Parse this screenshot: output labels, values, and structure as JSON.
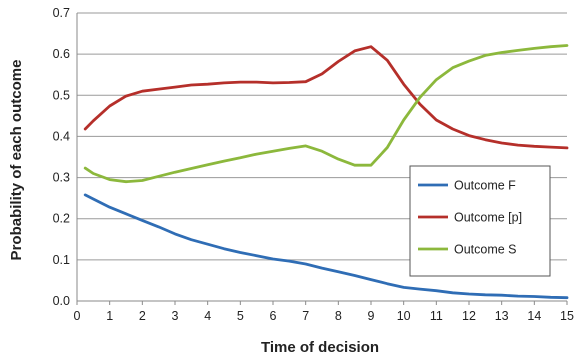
{
  "chart_data": {
    "type": "line",
    "title": "",
    "xlabel": "Time of decision",
    "ylabel": "Probability of each outcome",
    "xlim": [
      0,
      15
    ],
    "ylim": [
      0,
      0.7
    ],
    "x_ticks": [
      "0",
      "1",
      "2",
      "3",
      "4",
      "5",
      "6",
      "7",
      "8",
      "9",
      "10",
      "11",
      "12",
      "13",
      "14",
      "15"
    ],
    "y_ticks": [
      "0.0",
      "0.1",
      "0.2",
      "0.3",
      "0.4",
      "0.5",
      "0.6",
      "0.7"
    ],
    "grid": "horizontal",
    "legend_position": "right",
    "series": [
      {
        "name": "Outcome F",
        "color": "#2f6db5",
        "points": [
          [
            0.25,
            0.258
          ],
          [
            0.5,
            0.248
          ],
          [
            1,
            0.228
          ],
          [
            1.5,
            0.212
          ],
          [
            2,
            0.196
          ],
          [
            2.5,
            0.18
          ],
          [
            3,
            0.163
          ],
          [
            3.5,
            0.149
          ],
          [
            4,
            0.138
          ],
          [
            4.5,
            0.127
          ],
          [
            5,
            0.118
          ],
          [
            5.5,
            0.11
          ],
          [
            6,
            0.102
          ],
          [
            6.5,
            0.097
          ],
          [
            7,
            0.09
          ],
          [
            7.5,
            0.08
          ],
          [
            8,
            0.071
          ],
          [
            8.5,
            0.062
          ],
          [
            9,
            0.052
          ],
          [
            9.5,
            0.042
          ],
          [
            10,
            0.033
          ],
          [
            10.5,
            0.029
          ],
          [
            11,
            0.025
          ],
          [
            11.5,
            0.02
          ],
          [
            12,
            0.017
          ],
          [
            12.5,
            0.015
          ],
          [
            13,
            0.014
          ],
          [
            13.5,
            0.012
          ],
          [
            14,
            0.011
          ],
          [
            14.5,
            0.009
          ],
          [
            15,
            0.008
          ]
        ]
      },
      {
        "name": "Outcome [p]",
        "color": "#b52f2a",
        "points": [
          [
            0.25,
            0.418
          ],
          [
            0.5,
            0.438
          ],
          [
            1,
            0.474
          ],
          [
            1.5,
            0.498
          ],
          [
            2,
            0.51
          ],
          [
            2.5,
            0.515
          ],
          [
            3,
            0.52
          ],
          [
            3.5,
            0.525
          ],
          [
            4,
            0.527
          ],
          [
            4.5,
            0.53
          ],
          [
            5,
            0.532
          ],
          [
            5.5,
            0.532
          ],
          [
            6,
            0.53
          ],
          [
            6.5,
            0.531
          ],
          [
            7,
            0.533
          ],
          [
            7.5,
            0.552
          ],
          [
            8,
            0.582
          ],
          [
            8.5,
            0.608
          ],
          [
            9,
            0.618
          ],
          [
            9.5,
            0.585
          ],
          [
            10,
            0.527
          ],
          [
            10.5,
            0.478
          ],
          [
            11,
            0.44
          ],
          [
            11.5,
            0.418
          ],
          [
            12,
            0.402
          ],
          [
            12.5,
            0.392
          ],
          [
            13,
            0.384
          ],
          [
            13.5,
            0.379
          ],
          [
            14,
            0.376
          ],
          [
            14.5,
            0.374
          ],
          [
            15,
            0.372
          ]
        ]
      },
      {
        "name": "Outcome S",
        "color": "#8cb83c",
        "points": [
          [
            0.25,
            0.323
          ],
          [
            0.5,
            0.31
          ],
          [
            1,
            0.295
          ],
          [
            1.5,
            0.29
          ],
          [
            2,
            0.293
          ],
          [
            2.5,
            0.303
          ],
          [
            3,
            0.313
          ],
          [
            3.5,
            0.322
          ],
          [
            4,
            0.331
          ],
          [
            4.5,
            0.34
          ],
          [
            5,
            0.348
          ],
          [
            5.5,
            0.357
          ],
          [
            6,
            0.364
          ],
          [
            6.5,
            0.371
          ],
          [
            7,
            0.377
          ],
          [
            7.5,
            0.364
          ],
          [
            8,
            0.345
          ],
          [
            8.5,
            0.33
          ],
          [
            9,
            0.33
          ],
          [
            9.5,
            0.373
          ],
          [
            10,
            0.44
          ],
          [
            10.5,
            0.495
          ],
          [
            11,
            0.538
          ],
          [
            11.5,
            0.567
          ],
          [
            12,
            0.583
          ],
          [
            12.5,
            0.597
          ],
          [
            13,
            0.604
          ],
          [
            13.5,
            0.609
          ],
          [
            14,
            0.614
          ],
          [
            14.5,
            0.618
          ],
          [
            15,
            0.621
          ]
        ]
      }
    ]
  }
}
